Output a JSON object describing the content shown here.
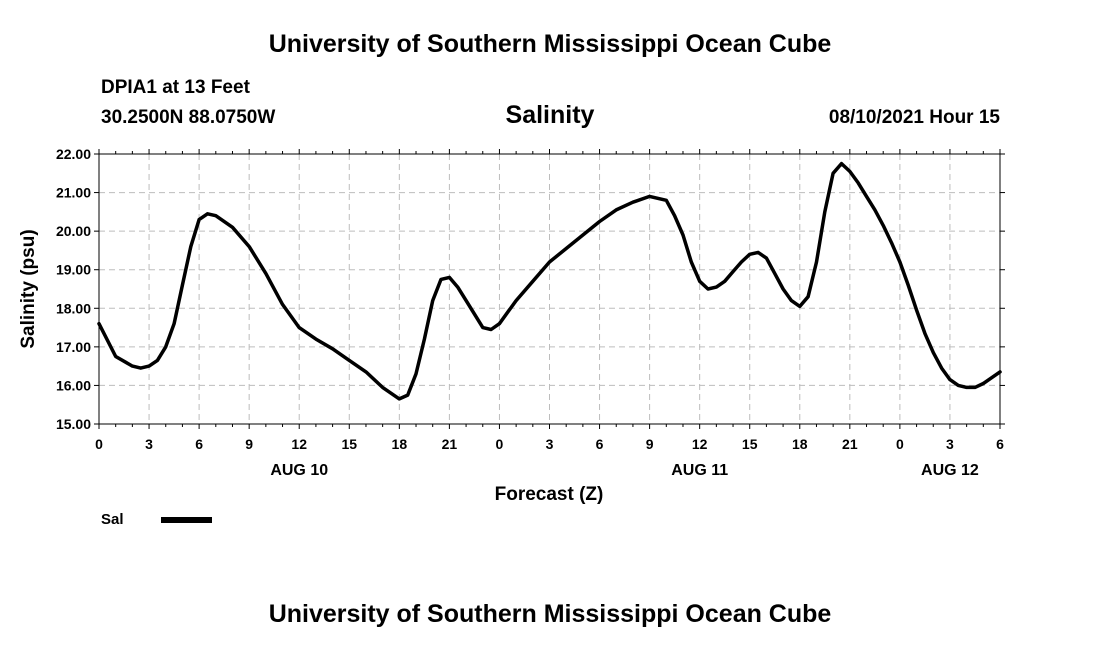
{
  "header": {
    "top_title": "University of Southern Mississippi Ocean Cube",
    "station": "DPIA1 at 13 Feet",
    "coords": "30.2500N  88.0750W",
    "datetime": "08/10/2021 Hour 15"
  },
  "footer": {
    "bottom_title": "University of Southern Mississippi Ocean Cube"
  },
  "legend": {
    "label": "Sal",
    "color": "#000000"
  },
  "chart_data": {
    "type": "line",
    "title": "Salinity",
    "xlabel": "Forecast (Z)",
    "ylabel": "Salinity (psu)",
    "ylim": [
      15.0,
      22.0
    ],
    "xlim": [
      0,
      54
    ],
    "y_ticks": [
      "15.00",
      "16.00",
      "17.00",
      "18.00",
      "19.00",
      "20.00",
      "21.00",
      "22.00"
    ],
    "x_ticks": [
      "0",
      "3",
      "6",
      "9",
      "12",
      "15",
      "18",
      "21",
      "0",
      "3",
      "6",
      "9",
      "12",
      "15",
      "18",
      "21",
      "0",
      "3",
      "6"
    ],
    "day_labels": [
      {
        "label": "AUG 10",
        "hour": 12
      },
      {
        "label": "AUG 11",
        "hour": 36
      },
      {
        "label": "AUG 12",
        "hour": 51
      }
    ],
    "grid": true,
    "series": [
      {
        "name": "Sal",
        "color": "#000000",
        "x": [
          0,
          1,
          2,
          2.5,
          3,
          3.5,
          4,
          4.5,
          5,
          5.5,
          6,
          6.5,
          7,
          8,
          9,
          10,
          11,
          12,
          13,
          14,
          15,
          16,
          17,
          18,
          18.5,
          19,
          19.5,
          20,
          20.5,
          21,
          21.5,
          22,
          23,
          23.5,
          24,
          25,
          26,
          27,
          28,
          29,
          30,
          31,
          32,
          33,
          34,
          34.5,
          35,
          35.5,
          36,
          36.5,
          37,
          37.5,
          38,
          38.5,
          39,
          39.5,
          40,
          40.5,
          41,
          41.5,
          42,
          42.5,
          43,
          43.5,
          44,
          44.5,
          45,
          45.5,
          46,
          46.5,
          47,
          47.5,
          48,
          48.5,
          49,
          49.5,
          50,
          50.5,
          51,
          51.5,
          52,
          52.5,
          53,
          53.5,
          54
        ],
        "y": [
          17.6,
          16.75,
          16.5,
          16.45,
          16.5,
          16.65,
          17.0,
          17.6,
          18.6,
          19.6,
          20.3,
          20.45,
          20.4,
          20.1,
          19.6,
          18.9,
          18.1,
          17.5,
          17.2,
          16.95,
          16.65,
          16.35,
          15.95,
          15.65,
          15.75,
          16.3,
          17.2,
          18.2,
          18.75,
          18.8,
          18.55,
          18.2,
          17.5,
          17.45,
          17.6,
          18.2,
          18.7,
          19.2,
          19.55,
          19.9,
          20.25,
          20.55,
          20.75,
          20.9,
          20.8,
          20.4,
          19.9,
          19.2,
          18.7,
          18.5,
          18.55,
          18.7,
          18.95,
          19.2,
          19.4,
          19.45,
          19.3,
          18.9,
          18.5,
          18.2,
          18.05,
          18.3,
          19.2,
          20.5,
          21.5,
          21.75,
          21.55,
          21.25,
          20.9,
          20.55,
          20.15,
          19.7,
          19.2,
          18.6,
          17.95,
          17.35,
          16.85,
          16.45,
          16.15,
          16.0,
          15.95,
          15.95,
          16.05,
          16.2,
          16.35
        ]
      }
    ]
  }
}
